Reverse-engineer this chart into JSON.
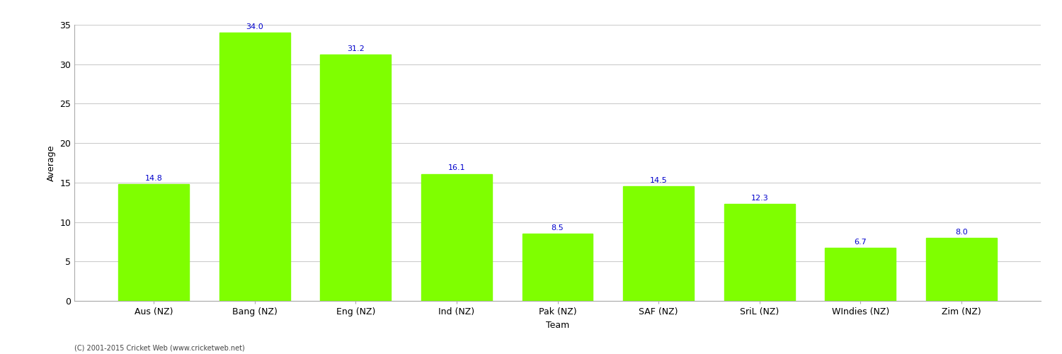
{
  "categories": [
    "Aus (NZ)",
    "Bang (NZ)",
    "Eng (NZ)",
    "Ind (NZ)",
    "Pak (NZ)",
    "SAF (NZ)",
    "SriL (NZ)",
    "WIndies (NZ)",
    "Zim (NZ)"
  ],
  "values": [
    14.8,
    34.0,
    31.2,
    16.1,
    8.5,
    14.5,
    12.3,
    6.7,
    8.0
  ],
  "bar_color": "#7FFF00",
  "bar_edge_color": "#7FFF00",
  "label_color": "#0000CC",
  "xlabel": "Team",
  "ylabel": "Average",
  "ylim": [
    0,
    35
  ],
  "yticks": [
    0,
    5,
    10,
    15,
    20,
    25,
    30,
    35
  ],
  "grid_color": "#cccccc",
  "background_color": "#ffffff",
  "footer": "(C) 2001-2015 Cricket Web (www.cricketweb.net)",
  "label_fontsize": 8,
  "axis_label_fontsize": 9,
  "tick_fontsize": 9,
  "bar_width": 0.7
}
